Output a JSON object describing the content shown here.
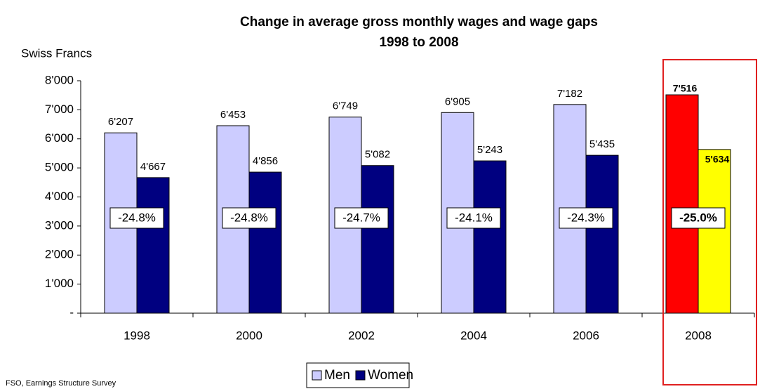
{
  "chart_data": {
    "type": "bar",
    "title": "Change in average gross monthly wages and wage gaps",
    "subtitle": "1998 to 2008",
    "y_label": "Swiss Francs",
    "source": "FSO, Earnings Structure Survey",
    "categories": [
      "1998",
      "2000",
      "2002",
      "2004",
      "2006",
      "2008"
    ],
    "series": [
      {
        "name": "Men",
        "color": "#ccccff",
        "values": [
          6207,
          6453,
          6749,
          6905,
          7182,
          7516
        ],
        "value_labels": [
          "6'207",
          "6'453",
          "6'749",
          "6'905",
          "7'182",
          "7'516"
        ]
      },
      {
        "name": "Women",
        "color": "#000080",
        "values": [
          4667,
          4856,
          5082,
          5243,
          5435,
          5634
        ],
        "value_labels": [
          "4'667",
          "4'856",
          "5'082",
          "5'243",
          "5'435",
          "5'634"
        ]
      }
    ],
    "gap_labels": [
      "-24.8%",
      "-24.8%",
      "-24.7%",
      "-24.1%",
      "-24.3%",
      "-25.0%"
    ],
    "highlight": {
      "category": "2008",
      "colors": [
        "#ff0000",
        "#ffff00"
      ],
      "box_color": "#e02020"
    },
    "ylim": [
      0,
      8000
    ],
    "yticks": [
      {
        "value": 0,
        "label": "-"
      },
      {
        "value": 1000,
        "label": "1'000"
      },
      {
        "value": 2000,
        "label": "2'000"
      },
      {
        "value": 3000,
        "label": "3'000"
      },
      {
        "value": 4000,
        "label": "4'000"
      },
      {
        "value": 5000,
        "label": "5'000"
      },
      {
        "value": 6000,
        "label": "6'000"
      },
      {
        "value": 7000,
        "label": "7'000"
      },
      {
        "value": 8000,
        "label": "8'000"
      }
    ],
    "legend": "bottom"
  }
}
